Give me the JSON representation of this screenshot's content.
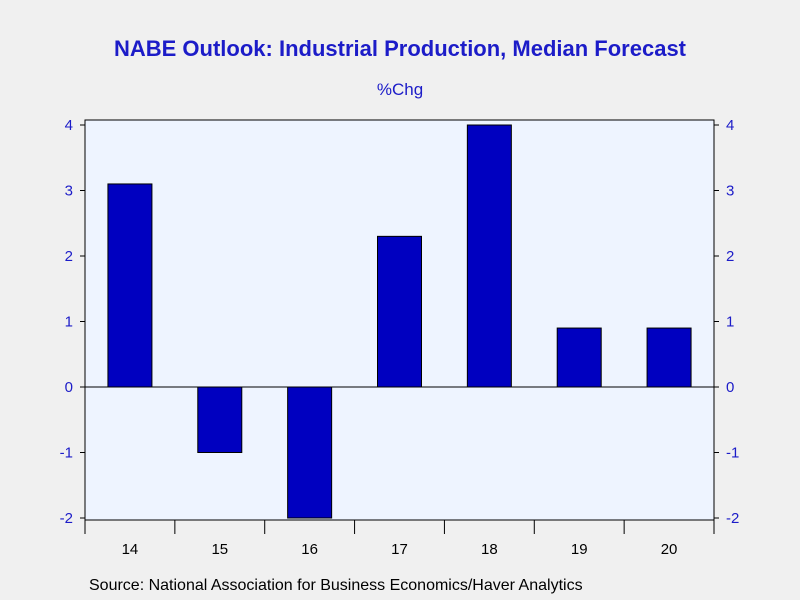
{
  "chart_data": {
    "type": "bar",
    "title": "NABE Outlook: Industrial Production, Median Forecast",
    "subtitle": "%Chg",
    "xlabel": "",
    "ylabel": "",
    "categories": [
      "14",
      "15",
      "16",
      "17",
      "18",
      "19",
      "20"
    ],
    "values": [
      3.1,
      -1.0,
      -2.0,
      2.3,
      4.0,
      0.9,
      0.9
    ],
    "ylim": [
      -2,
      4
    ],
    "yticks": [
      4,
      3,
      2,
      1,
      0,
      -1,
      -2
    ],
    "grid": false,
    "legend": "none",
    "axes": "left and right y-axes",
    "source": "Source:  National Association for Business Economics/Haver Analytics"
  },
  "colors": {
    "bar_fill": "#0000c0",
    "plot_background": "#eef4ff",
    "page_background": "#f0f0f0",
    "title_color": "#1c1cc8",
    "tick_label_color": "#1c1cc8",
    "axis_color": "#000000"
  }
}
